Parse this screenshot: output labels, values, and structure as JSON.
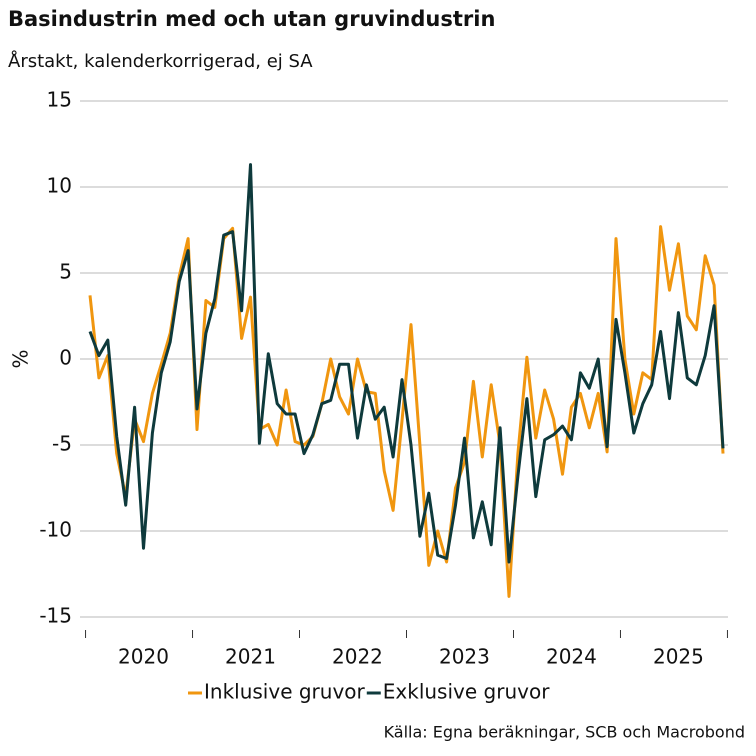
{
  "chart_data": {
    "type": "line",
    "title": "Basindustrin med och utan gruvindustrin",
    "subtitle": "Årstakt, kalenderkorrigerad, ej SA",
    "y_label": "%",
    "source": "Källa: Egna beräkningar, SCB och Macrobond",
    "categories": [
      null,
      null,
      null,
      null,
      null,
      null,
      "2020",
      null,
      null,
      null,
      null,
      null,
      null,
      null,
      null,
      null,
      null,
      null,
      "2021",
      null,
      null,
      null,
      null,
      null,
      null,
      null,
      null,
      null,
      null,
      null,
      "2022",
      null,
      null,
      null,
      null,
      null,
      null,
      null,
      null,
      null,
      null,
      null,
      "2023",
      null,
      null,
      null,
      null,
      null,
      null,
      null,
      null,
      null,
      null,
      null,
      "2024",
      null,
      null,
      null,
      null,
      null,
      null,
      null,
      null,
      null,
      null,
      null,
      "2025",
      null,
      null,
      null,
      null,
      null
    ],
    "series": [
      {
        "name": "Inklusive gruvor",
        "color": "#f0960f",
        "values": [
          3.7,
          -1.1,
          0.2,
          -5.5,
          -8,
          -3.5,
          -4.8,
          -2,
          -0.3,
          1.5,
          4.8,
          7,
          -4.1,
          3.4,
          3,
          7,
          7.6,
          1.2,
          3.6,
          -4.1,
          -3.8,
          -5,
          -1.8,
          -4.8,
          -5,
          -4.5,
          -2.6,
          0,
          -2.2,
          -3.2,
          0,
          -1.9,
          -2,
          -6.5,
          -8.8,
          -3.6,
          2,
          -5,
          -12,
          -10,
          -11.8,
          -7.5,
          -6,
          -1.3,
          -5.7,
          -1.5,
          -5,
          -13.8,
          -5.5,
          0.1,
          -4.6,
          -1.8,
          -3.5,
          -6.7,
          -2.8,
          -2,
          -4,
          -2,
          -5.4,
          7,
          0,
          -3.2,
          -0.8,
          -1.2,
          7.7,
          4,
          6.7,
          2.5,
          1.7,
          6,
          4.3,
          -5.5
        ]
      },
      {
        "name": "Exklusive gruvor",
        "color": "#0e3a3c",
        "values": [
          1.6,
          0.2,
          1.1,
          -4.5,
          -8.5,
          -2.8,
          -11,
          -4.3,
          -0.8,
          1,
          4.5,
          6.3,
          -2.9,
          1.5,
          3.5,
          7.2,
          7.4,
          2.8,
          11.3,
          -4.9,
          0.3,
          -2.6,
          -3.2,
          -3.2,
          -5.5,
          -4.4,
          -2.6,
          -2.4,
          -0.3,
          -0.3,
          -4.6,
          -1.5,
          -3.5,
          -2.8,
          -5.7,
          -1.2,
          -5,
          -10.3,
          -7.8,
          -11.4,
          -11.6,
          -8.5,
          -4.6,
          -10.4,
          -8.3,
          -10.8,
          -4,
          -11.8,
          -6.8,
          -2.3,
          -8,
          -4.7,
          -4.4,
          -3.9,
          -4.7,
          -0.8,
          -1.7,
          0,
          -5.1,
          2.3,
          -0.8,
          -4.3,
          -2.6,
          -1.5,
          1.6,
          -2.3,
          2.7,
          -1.1,
          -1.5,
          0.2,
          3.1,
          -5.2
        ]
      }
    ],
    "ylim": [
      -15,
      15
    ],
    "yticks": [
      15,
      10,
      5,
      0,
      -5,
      -10,
      -15
    ],
    "grid": true,
    "legend": "bottom"
  }
}
